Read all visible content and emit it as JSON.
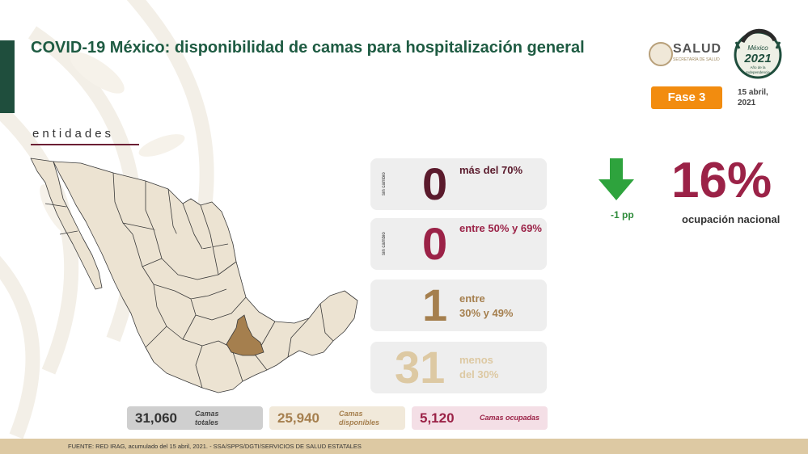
{
  "header": {
    "title": "COVID-19 México: disponibilidad de camas para hospitalización general",
    "section_label": "entidades"
  },
  "logos": {
    "salud_text": "SALUD",
    "salud_subtext": "SECRETARÍA DE SALUD",
    "mexico_2021_lines": [
      "México",
      "2021",
      "Año de la",
      "Independencia"
    ]
  },
  "phase": {
    "label": "Fase 3",
    "date_line1": "15 abril,",
    "date_line2": "2021"
  },
  "categories": [
    {
      "side_label": "sin cambio",
      "count": "0",
      "desc_line1": "más del 70%",
      "desc_line2": "",
      "color": "#5a1a2c"
    },
    {
      "side_label": "sin cambio",
      "count": "0",
      "desc_line1": "entre 50% y 69%",
      "desc_line2": "",
      "color": "#9b2247"
    },
    {
      "side_label": "",
      "count": "1",
      "desc_line1": "entre",
      "desc_line2": "30% y 49%",
      "color": "#a57f4e"
    },
    {
      "side_label": "",
      "count": "31",
      "desc_line1": "menos",
      "desc_line2": "del 30%",
      "color": "#ddc9a3"
    }
  ],
  "national": {
    "change": "-1 pp",
    "occupancy": "16%",
    "occupancy_label": "ocupación nacional",
    "arrow_color": "#2ea33d"
  },
  "stats": {
    "total_value": "31,060",
    "total_label_line1": "Camas",
    "total_label_line2": "totales",
    "available_value": "25,940",
    "available_label_line1": "Camas",
    "available_label_line2": "disponibles",
    "occupied_value": "5,120",
    "occupied_label": "Camas ocupadas"
  },
  "footer": {
    "source": "FUENTE: RED IRAG, acumulado del 15 abril, 2021.  -  SSA/SPPS/DGTI/SERVICIOS DE SALUD ESTATALES"
  },
  "colors": {
    "title_green": "#1e5b42",
    "map_fill": "#ece3d2",
    "map_highlight": "#a57f4e",
    "footer_beige": "#ddc9a3"
  }
}
